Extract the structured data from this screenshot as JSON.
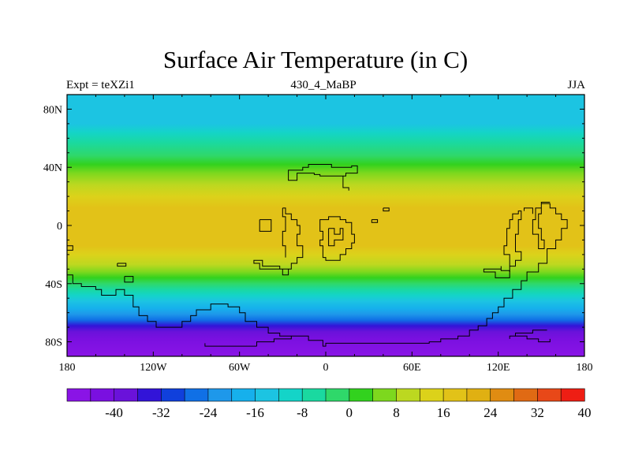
{
  "title": "Surface Air Temperature (in C)",
  "subtitle_left": "Expt = teXZi1",
  "subtitle_center": "430_4_MaBP",
  "subtitle_right": "JJA",
  "lat_ticks": [
    {
      "label": "80N",
      "lat": 80
    },
    {
      "label": "40N",
      "lat": 40
    },
    {
      "label": "0",
      "lat": 0
    },
    {
      "label": "40S",
      "lat": -40
    },
    {
      "label": "80S",
      "lat": -80
    }
  ],
  "lon_ticks": [
    {
      "label": "180",
      "lon": -180
    },
    {
      "label": "120W",
      "lon": -120
    },
    {
      "label": "60W",
      "lon": -60
    },
    {
      "label": "0",
      "lon": 0
    },
    {
      "label": "60E",
      "lon": 60
    },
    {
      "label": "120E",
      "lon": 120
    },
    {
      "label": "180",
      "lon": 180
    }
  ],
  "colorbar": {
    "labels": [
      "-40",
      "-32",
      "-24",
      "-16",
      "-8",
      "0",
      "8",
      "16",
      "24",
      "32",
      "40"
    ],
    "colors": [
      "#8a14e6",
      "#7a10e0",
      "#6a12da",
      "#3214d8",
      "#1040dc",
      "#1070e6",
      "#1e98ea",
      "#16b0ec",
      "#1cc4e2",
      "#14d4c8",
      "#1ad9a0",
      "#2fd86a",
      "#32d21e",
      "#7dd81e",
      "#bcd820",
      "#dcd21a",
      "#e2c218",
      "#e0b012",
      "#e08c12",
      "#e06a14",
      "#e84818",
      "#ee1e14"
    ]
  },
  "lat_bands": [
    {
      "lat": 90,
      "color": "#1cc4e2"
    },
    {
      "lat": 70,
      "color": "#1cc4e2"
    },
    {
      "lat": 64,
      "color": "#14d4c8"
    },
    {
      "lat": 57,
      "color": "#1ad9a0"
    },
    {
      "lat": 48,
      "color": "#2fd86a"
    },
    {
      "lat": 42,
      "color": "#32d21e"
    },
    {
      "lat": 36,
      "color": "#7dd81e"
    },
    {
      "lat": 28,
      "color": "#bcd820"
    },
    {
      "lat": 20,
      "color": "#dcd21a"
    },
    {
      "lat": 12,
      "color": "#e2c218"
    },
    {
      "lat": -14,
      "color": "#e2c218"
    },
    {
      "lat": -20,
      "color": "#dcd21a"
    },
    {
      "lat": -27,
      "color": "#bcd820"
    },
    {
      "lat": -32,
      "color": "#7dd81e"
    },
    {
      "lat": -36,
      "color": "#32d21e"
    },
    {
      "lat": -40,
      "color": "#2fd86a"
    },
    {
      "lat": -44,
      "color": "#1ad9a0"
    },
    {
      "lat": -48,
      "color": "#14d4c8"
    },
    {
      "lat": -52,
      "color": "#1cc4e2"
    },
    {
      "lat": -57,
      "color": "#16b0ec"
    },
    {
      "lat": -61,
      "color": "#1e98ea"
    },
    {
      "lat": -65,
      "color": "#1070e6"
    },
    {
      "lat": -69,
      "color": "#3214d8"
    },
    {
      "lat": -73,
      "color": "#6a12da"
    },
    {
      "lat": -78,
      "color": "#7a10e0"
    },
    {
      "lat": -90,
      "color": "#8a14e6"
    }
  ],
  "coastlines": [
    [
      [
        -48,
        -83
      ],
      [
        -48,
        -80
      ],
      [
        -36,
        -80
      ],
      [
        -36,
        -78
      ],
      [
        -24,
        -78
      ],
      [
        -24,
        -76
      ],
      [
        -12,
        -76
      ],
      [
        -12,
        -79
      ],
      [
        -2,
        -79
      ],
      [
        -2,
        -83
      ],
      [
        0,
        -83
      ],
      [
        0,
        -81
      ],
      [
        72,
        -81
      ],
      [
        72,
        -80
      ],
      [
        80,
        -80
      ],
      [
        80,
        -78
      ],
      [
        92,
        -78
      ],
      [
        92,
        -76
      ],
      [
        100,
        -76
      ],
      [
        100,
        -72
      ],
      [
        106,
        -72
      ],
      [
        106,
        -69
      ],
      [
        112,
        -69
      ],
      [
        112,
        -64
      ],
      [
        116,
        -64
      ],
      [
        116,
        -60
      ],
      [
        120,
        -60
      ],
      [
        120,
        -56
      ],
      [
        124,
        -56
      ],
      [
        124,
        -50
      ],
      [
        130,
        -50
      ],
      [
        130,
        -44
      ],
      [
        136,
        -44
      ],
      [
        136,
        -38
      ],
      [
        140,
        -38
      ],
      [
        140,
        -32
      ],
      [
        148,
        -32
      ],
      [
        148,
        -26
      ],
      [
        154,
        -26
      ],
      [
        154,
        -16
      ],
      [
        160,
        -16
      ],
      [
        160,
        -10
      ],
      [
        164,
        -10
      ],
      [
        164,
        -2
      ],
      [
        168,
        -2
      ],
      [
        168,
        4
      ],
      [
        164,
        4
      ],
      [
        164,
        8
      ],
      [
        160,
        8
      ],
      [
        160,
        12
      ],
      [
        156,
        12
      ],
      [
        156,
        15
      ],
      [
        150,
        15
      ],
      [
        150,
        8
      ],
      [
        148,
        8
      ],
      [
        148,
        -2
      ],
      [
        150,
        -2
      ],
      [
        150,
        -10
      ],
      [
        152,
        -10
      ],
      [
        152,
        -16
      ],
      [
        148,
        -16
      ],
      [
        148,
        -6
      ],
      [
        144,
        -6
      ],
      [
        144,
        4
      ],
      [
        146,
        4
      ],
      [
        146,
        12
      ],
      [
        150,
        12
      ],
      [
        150,
        16
      ],
      [
        156,
        16
      ]
    ],
    [
      [
        -180,
        -14
      ],
      [
        -176,
        -14
      ],
      [
        -176,
        -17
      ],
      [
        -180,
        -17
      ]
    ],
    [
      [
        -180,
        -34
      ],
      [
        -176,
        -34
      ],
      [
        -176,
        -40
      ],
      [
        -170,
        -40
      ],
      [
        -170,
        -42
      ],
      [
        -160,
        -42
      ],
      [
        -160,
        -44
      ],
      [
        -156,
        -44
      ],
      [
        -156,
        -48
      ],
      [
        -146,
        -48
      ],
      [
        -146,
        -44
      ],
      [
        -140,
        -44
      ],
      [
        -140,
        -48
      ],
      [
        -134,
        -48
      ],
      [
        -134,
        -56
      ],
      [
        -130,
        -56
      ],
      [
        -130,
        -62
      ],
      [
        -124,
        -62
      ],
      [
        -124,
        -66
      ],
      [
        -118,
        -66
      ],
      [
        -118,
        -70
      ],
      [
        -100,
        -70
      ],
      [
        -100,
        -66
      ],
      [
        -94,
        -66
      ],
      [
        -94,
        -62
      ],
      [
        -90,
        -62
      ],
      [
        -90,
        -58
      ],
      [
        -80,
        -58
      ],
      [
        -80,
        -54
      ],
      [
        -68,
        -54
      ],
      [
        -68,
        -56
      ],
      [
        -60,
        -56
      ],
      [
        -60,
        -60
      ],
      [
        -56,
        -60
      ],
      [
        -56,
        -66
      ],
      [
        -48,
        -66
      ],
      [
        -48,
        -70
      ],
      [
        -40,
        -70
      ],
      [
        -40,
        -74
      ],
      [
        -32,
        -74
      ],
      [
        -32,
        -76
      ],
      [
        -24,
        -76
      ]
    ],
    [
      [
        -145,
        -26
      ],
      [
        -139,
        -26
      ],
      [
        -139,
        -28
      ],
      [
        -145,
        -28
      ],
      [
        -145,
        -26
      ]
    ],
    [
      [
        -140,
        -35
      ],
      [
        -134,
        -35
      ],
      [
        -134,
        -39
      ],
      [
        -140,
        -39
      ],
      [
        -140,
        -35
      ]
    ],
    [
      [
        -84,
        -81
      ],
      [
        -84,
        -83
      ],
      [
        -48,
        -83
      ]
    ],
    [
      [
        -26,
        32
      ],
      [
        -26,
        38
      ],
      [
        -16,
        38
      ],
      [
        -16,
        40
      ],
      [
        -12,
        40
      ],
      [
        -12,
        42
      ],
      [
        4,
        42
      ],
      [
        4,
        40
      ],
      [
        18,
        40
      ],
      [
        18,
        41
      ],
      [
        22,
        41
      ],
      [
        22,
        36
      ],
      [
        14,
        36
      ],
      [
        14,
        34
      ],
      [
        -4,
        34
      ],
      [
        -4,
        35
      ],
      [
        -8,
        35
      ],
      [
        -8,
        36
      ],
      [
        -20,
        36
      ],
      [
        -20,
        31
      ],
      [
        -26,
        31
      ],
      [
        -26,
        32
      ]
    ],
    [
      [
        12,
        34
      ],
      [
        12,
        26
      ],
      [
        16,
        26
      ],
      [
        16,
        24
      ]
    ],
    [
      [
        -30,
        12
      ],
      [
        -28,
        12
      ],
      [
        -28,
        8
      ],
      [
        -24,
        8
      ],
      [
        -24,
        4
      ],
      [
        -20,
        4
      ],
      [
        -20,
        0
      ],
      [
        -18,
        0
      ],
      [
        -18,
        -6
      ],
      [
        -20,
        -6
      ],
      [
        -20,
        -14
      ],
      [
        -16,
        -14
      ],
      [
        -16,
        -22
      ],
      [
        -20,
        -22
      ],
      [
        -20,
        -26
      ],
      [
        -24,
        -26
      ],
      [
        -24,
        -30
      ],
      [
        -32,
        -30
      ],
      [
        -32,
        -28
      ],
      [
        -44,
        -28
      ],
      [
        -44,
        -24
      ],
      [
        -50,
        -24
      ],
      [
        -50,
        -26
      ],
      [
        -46,
        -26
      ],
      [
        -46,
        -30
      ],
      [
        -30,
        -30
      ],
      [
        -30,
        -34
      ],
      [
        -26,
        -34
      ],
      [
        -26,
        -30
      ],
      [
        -24,
        -30
      ]
    ],
    [
      [
        -30,
        12
      ],
      [
        -30,
        6
      ],
      [
        -28,
        6
      ],
      [
        -28,
        -4
      ],
      [
        -30,
        -4
      ],
      [
        -30,
        -14
      ],
      [
        -28,
        -14
      ],
      [
        -28,
        -22
      ]
    ],
    [
      [
        -46,
        4
      ],
      [
        -46,
        -4
      ],
      [
        -38,
        -4
      ],
      [
        -38,
        4
      ],
      [
        -46,
        4
      ]
    ],
    [
      [
        -4,
        2
      ],
      [
        -4,
        -4
      ],
      [
        -2,
        -4
      ],
      [
        -2,
        -10
      ],
      [
        -4,
        -10
      ],
      [
        -4,
        -14
      ],
      [
        -2,
        -14
      ],
      [
        -2,
        -22
      ],
      [
        0,
        -22
      ],
      [
        0,
        -24
      ],
      [
        10,
        -24
      ],
      [
        10,
        -20
      ],
      [
        14,
        -20
      ],
      [
        14,
        -16
      ],
      [
        18,
        -16
      ],
      [
        18,
        -12
      ],
      [
        20,
        -12
      ],
      [
        20,
        -6
      ],
      [
        18,
        -6
      ],
      [
        18,
        2
      ],
      [
        14,
        2
      ],
      [
        14,
        4
      ],
      [
        10,
        4
      ],
      [
        10,
        6
      ],
      [
        2,
        6
      ],
      [
        2,
        4
      ],
      [
        -4,
        4
      ],
      [
        -4,
        2
      ]
    ],
    [
      [
        2,
        -2
      ],
      [
        6,
        -2
      ],
      [
        6,
        -6
      ],
      [
        10,
        -6
      ],
      [
        10,
        -2
      ],
      [
        12,
        -2
      ],
      [
        12,
        -10
      ],
      [
        6,
        -10
      ],
      [
        6,
        -14
      ],
      [
        2,
        -14
      ],
      [
        2,
        -2
      ]
    ],
    [
      [
        32,
        4
      ],
      [
        32,
        2
      ],
      [
        36,
        2
      ],
      [
        36,
        4
      ],
      [
        32,
        4
      ]
    ],
    [
      [
        40,
        12
      ],
      [
        40,
        10
      ],
      [
        44,
        10
      ],
      [
        44,
        12
      ],
      [
        40,
        12
      ]
    ],
    [
      [
        122,
        -28
      ],
      [
        122,
        -31
      ],
      [
        128,
        -31
      ],
      [
        128,
        -36
      ],
      [
        118,
        -36
      ],
      [
        118,
        -32
      ],
      [
        110,
        -32
      ],
      [
        110,
        -30
      ],
      [
        122,
        -30
      ]
    ],
    [
      [
        128,
        -32
      ],
      [
        128,
        -20
      ],
      [
        124,
        -20
      ],
      [
        124,
        -14
      ],
      [
        126,
        -14
      ],
      [
        126,
        -2
      ],
      [
        128,
        -2
      ],
      [
        128,
        4
      ],
      [
        130,
        4
      ],
      [
        130,
        8
      ],
      [
        134,
        8
      ],
      [
        134,
        10
      ],
      [
        136,
        10
      ],
      [
        136,
        4
      ],
      [
        134,
        4
      ],
      [
        134,
        -6
      ],
      [
        132,
        -6
      ],
      [
        132,
        -18
      ],
      [
        136,
        -18
      ],
      [
        136,
        -24
      ],
      [
        132,
        -24
      ],
      [
        132,
        -28
      ],
      [
        128,
        -28
      ]
    ],
    [
      [
        138,
        10
      ],
      [
        138,
        12
      ],
      [
        144,
        12
      ],
      [
        144,
        8
      ]
    ],
    [
      [
        154,
        -72
      ],
      [
        144,
        -72
      ],
      [
        144,
        -74
      ],
      [
        132,
        -74
      ],
      [
        132,
        -76
      ],
      [
        128,
        -76
      ],
      [
        128,
        -78
      ]
    ],
    [
      [
        132,
        -76
      ],
      [
        140,
        -76
      ],
      [
        140,
        -78
      ],
      [
        148,
        -78
      ],
      [
        148,
        -80
      ],
      [
        156,
        -80
      ],
      [
        156,
        -78
      ]
    ]
  ]
}
